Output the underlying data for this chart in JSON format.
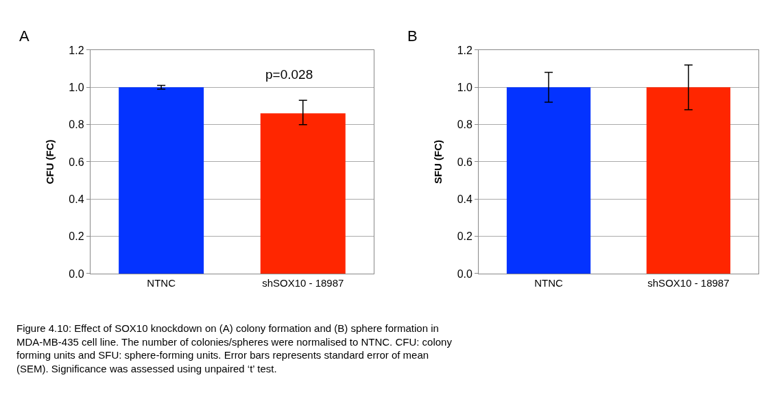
{
  "chart_data": [
    {
      "type": "bar",
      "title": "A",
      "ylabel": "CFU (FC)",
      "categories": [
        "NTNC",
        "shSOX10 - 18987"
      ],
      "values": [
        1.0,
        0.86
      ],
      "colors": [
        "#0433ff",
        "#ff2600"
      ],
      "errors": [
        0.01,
        [
          0.8,
          0.93
        ]
      ],
      "ylim": [
        0,
        1.2
      ],
      "yticks": [
        {
          "value": 0,
          "label": "0.0"
        },
        {
          "value": 0.2,
          "label": "0.2"
        },
        {
          "value": 0.4,
          "label": "0.4"
        },
        {
          "value": 0.6,
          "label": "0.6"
        },
        {
          "value": 0.8,
          "label": "0.8"
        },
        {
          "value": 1.0,
          "label": "1.0"
        },
        {
          "value": 1.2,
          "label": "1.2"
        }
      ],
      "grid": "y",
      "annotations": [
        "p=0.028",
        "Figure 4.10: Effect of SOX10 knockdown on (A) colony formation and (B) sphere formation in MDA-MB-435 cell line. The number of colonies/spheres were normalised to NTNC. CFU: colony forming units and SFU: sphere-forming units. Error bars represents standard error of mean (SEM). Significance was assessed using unpaired ‘t’ test."
      ]
    },
    {
      "type": "bar",
      "title": "B",
      "ylabel": "SFU (FC)",
      "categories": [
        "NTNC",
        "shSOX10 - 18987"
      ],
      "values": [
        1.0,
        1.0
      ],
      "colors": [
        "#0433ff",
        "#ff2600"
      ],
      "errors": [
        0.08,
        0.12
      ],
      "ylim": [
        0,
        1.2
      ],
      "yticks": [
        {
          "value": 0,
          "label": "0.0"
        },
        {
          "value": 0.2,
          "label": "0.2"
        },
        {
          "value": 0.4,
          "label": "0.4"
        },
        {
          "value": 0.6,
          "label": "0.6"
        },
        {
          "value": 0.8,
          "label": "0.8"
        },
        {
          "value": 1.0,
          "label": "1.0"
        },
        {
          "value": 1.2,
          "label": "1.2"
        }
      ],
      "grid": "y"
    }
  ]
}
